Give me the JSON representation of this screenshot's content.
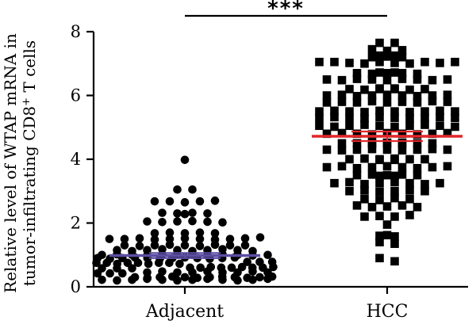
{
  "chart_data": {
    "type": "scatter",
    "ylim": [
      0,
      8
    ],
    "yticks": [
      0,
      2,
      4,
      6,
      8
    ],
    "ytick_labels": [
      "0",
      "2",
      "4",
      "6",
      "8"
    ],
    "categories": [
      "Adjacent",
      "HCC"
    ],
    "ylabel_line1": "Relative level of WTAP mRNA in",
    "ylabel_line2_a": "tumor-infiltrating  CD8",
    "ylabel_line2_sup": "+",
    "ylabel_line2_b": " T cells",
    "significance": "***",
    "colors": {
      "adjacent_mean": "#5b4ea3",
      "hcc_mean": "#e0262a",
      "points": "#000000"
    },
    "series": [
      {
        "category": "Adjacent",
        "marker": "circle",
        "mean": 0.98,
        "error": 0.08,
        "values": [
          3.98,
          3.05,
          3.05,
          2.68,
          2.68,
          2.65,
          2.68,
          2.7,
          2.32,
          2.3,
          2.32,
          2.28,
          2.3,
          2.05,
          2.03,
          2.05,
          2.06,
          2.04,
          2.02,
          1.68,
          1.7,
          1.68,
          1.7,
          1.68,
          1.5,
          1.5,
          1.52,
          1.48,
          1.5,
          1.52,
          1.5,
          1.48,
          1.5,
          1.52,
          1.55,
          1.3,
          1.28,
          1.3,
          1.32,
          1.3,
          1.28,
          1.32,
          1.3,
          1.3,
          1.15,
          1.12,
          1.15,
          1.18,
          1.15,
          1.12,
          1.15,
          1.18,
          1.15,
          1.12,
          1.0,
          1.02,
          1.0,
          0.98,
          1.02,
          1.0,
          1.0,
          0.98,
          1.02,
          1.0,
          0.98,
          1.0,
          0.9,
          0.88,
          0.9,
          0.92,
          0.9,
          0.88,
          0.9,
          0.92,
          0.9,
          0.88,
          0.9,
          0.92,
          0.75,
          0.78,
          0.75,
          0.72,
          0.75,
          0.78,
          0.75,
          0.72,
          0.75,
          0.78,
          0.75,
          0.72,
          0.6,
          0.58,
          0.6,
          0.62,
          0.6,
          0.58,
          0.6,
          0.62,
          0.6,
          0.58,
          0.6,
          0.62,
          0.45,
          0.48,
          0.45,
          0.42,
          0.45,
          0.48,
          0.45,
          0.42,
          0.45,
          0.48,
          0.45,
          0.42,
          0.3,
          0.28,
          0.3,
          0.32,
          0.3,
          0.28,
          0.3,
          0.32,
          0.3,
          0.28,
          0.3,
          0.32,
          0.22,
          0.2,
          0.22,
          0.25,
          0.22,
          0.2,
          0.22,
          0.25,
          0.22,
          0.2,
          0.22,
          0.25
        ]
      },
      {
        "category": "HCC",
        "marker": "square",
        "mean": 4.72,
        "error": 0.15,
        "values": [
          7.65,
          7.65,
          7.45,
          7.4,
          7.42,
          7.25,
          7.2,
          7.22,
          7.25,
          7.2,
          7.05,
          7.05,
          7.02,
          7.0,
          7.05,
          7.02,
          7.0,
          7.05,
          7.02,
          7.05,
          6.7,
          6.72,
          6.68,
          6.7,
          6.72,
          6.7,
          6.68,
          6.5,
          6.48,
          6.52,
          6.5,
          6.48,
          6.52,
          6.5,
          6.48,
          6.5,
          6.2,
          6.22,
          6.18,
          6.2,
          6.22,
          6.2,
          6.18,
          6.2,
          6.0,
          6.02,
          5.98,
          6.0,
          6.02,
          6.0,
          5.98,
          6.0,
          6.02,
          5.78,
          5.8,
          5.78,
          5.82,
          5.78,
          5.8,
          5.78,
          5.82,
          5.8,
          5.5,
          5.52,
          5.5,
          5.48,
          5.52,
          5.5,
          5.48,
          5.5,
          5.52,
          5.5,
          5.3,
          5.32,
          5.3,
          5.28,
          5.32,
          5.3,
          5.28,
          5.3,
          5.32,
          5.3,
          5.05,
          5.02,
          5.05,
          5.08,
          5.05,
          5.02,
          5.05,
          5.08,
          5.05,
          5.02,
          4.8,
          4.82,
          4.8,
          4.78,
          4.82,
          4.8,
          4.78,
          4.8,
          4.82,
          4.5,
          4.52,
          4.5,
          4.48,
          4.52,
          4.5,
          4.48,
          4.5,
          4.52,
          4.5,
          4.3,
          4.28,
          4.3,
          4.32,
          4.3,
          4.28,
          4.3,
          4.32,
          4.3,
          4.0,
          4.02,
          3.98,
          4.0,
          4.02,
          4.0,
          3.98,
          4.0,
          3.75,
          3.78,
          3.72,
          3.75,
          3.78,
          3.75,
          3.72,
          3.75,
          3.78,
          3.5,
          3.48,
          3.52,
          3.5,
          3.48,
          3.52,
          3.5,
          3.25,
          3.28,
          3.22,
          3.25,
          3.28,
          3.25,
          3.22,
          3.25,
          3.0,
          3.02,
          2.98,
          3.0,
          3.02,
          3.0,
          2.75,
          2.72,
          2.78,
          2.75,
          2.55,
          2.5,
          2.52,
          2.55,
          2.5,
          2.2,
          2.22,
          2.2,
          2.25,
          1.95,
          1.6,
          1.58,
          1.62,
          1.4,
          1.35,
          0.9,
          0.8
        ]
      }
    ]
  }
}
